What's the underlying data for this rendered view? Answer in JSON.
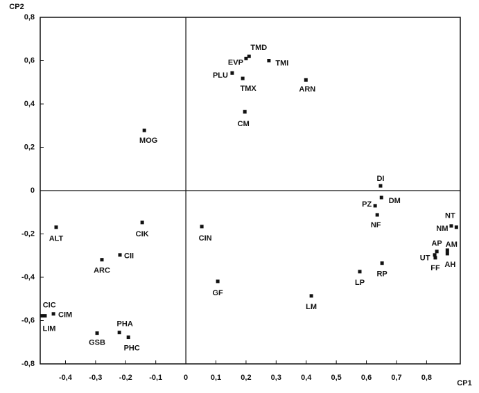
{
  "chart_data": {
    "type": "scatter",
    "x_label": "CP1",
    "y_label": "CP2",
    "xlim": [
      -0.484,
      0.912
    ],
    "ylim": [
      -0.8,
      0.8
    ],
    "xticks": [
      {
        "value": -0.4,
        "label": "-0,4"
      },
      {
        "value": -0.3,
        "label": "-0,3"
      },
      {
        "value": -0.2,
        "label": "-0,2"
      },
      {
        "value": -0.1,
        "label": "-0,1"
      },
      0,
      {
        "value": 0.1,
        "label": "0,1"
      },
      {
        "value": 0.2,
        "label": "0,2"
      },
      {
        "value": 0.3,
        "label": "0,3"
      },
      {
        "value": 0.4,
        "label": "0,4"
      },
      {
        "value": 0.5,
        "label": "0,5"
      },
      {
        "value": 0.6,
        "label": "0,6"
      },
      {
        "value": 0.7,
        "label": "0,7"
      },
      {
        "value": 0.8,
        "label": "0,8"
      }
    ],
    "yticks": [
      {
        "value": -0.8,
        "label": "-0,8"
      },
      {
        "value": -0.6,
        "label": "-0,6"
      },
      {
        "value": -0.4,
        "label": "-0,4"
      },
      {
        "value": -0.2,
        "label": "-0,2"
      },
      0,
      {
        "value": 0.2,
        "label": "0,2"
      },
      {
        "value": 0.4,
        "label": "0,4"
      },
      {
        "value": 0.6,
        "label": "0,6"
      },
      {
        "value": 0.8,
        "label": "0,8"
      }
    ],
    "color": "#111111",
    "labels": [
      "TMD",
      "EVP",
      "TMI",
      "PLU",
      "TMX",
      "ARN",
      "CM",
      "MOG",
      "DI",
      "DM",
      "PZ",
      "NF",
      "NT",
      "NM",
      "AP",
      "AM",
      "UT",
      "FF",
      "AH",
      "RP",
      "LP",
      "LM",
      "GF",
      "CIN",
      "CIK",
      "ALT",
      "CII",
      "ARC",
      "CIC",
      "LIM",
      "CIM",
      "GSB",
      "PHA",
      "PHC"
    ],
    "x": [
      0.21,
      0.2,
      0.276,
      0.154,
      0.189,
      0.399,
      0.196,
      -0.138,
      0.647,
      0.65,
      0.629,
      0.636,
      0.899,
      0.882,
      0.834,
      0.869,
      0.827,
      0.829,
      0.869,
      0.652,
      0.578,
      0.417,
      0.106,
      0.053,
      -0.145,
      -0.431,
      -0.219,
      -0.279,
      -0.479,
      -0.468,
      -0.44,
      -0.295,
      -0.221,
      -0.191
    ],
    "values": [
      0.62,
      0.61,
      0.6,
      0.543,
      0.518,
      0.511,
      0.364,
      0.278,
      0.022,
      -0.032,
      -0.07,
      -0.112,
      -0.169,
      -0.163,
      -0.281,
      -0.275,
      -0.297,
      -0.31,
      -0.291,
      -0.335,
      -0.374,
      -0.486,
      -0.419,
      -0.166,
      -0.147,
      -0.169,
      -0.297,
      -0.319,
      -0.578,
      -0.578,
      -0.569,
      -0.658,
      -0.655,
      -0.677
    ]
  }
}
